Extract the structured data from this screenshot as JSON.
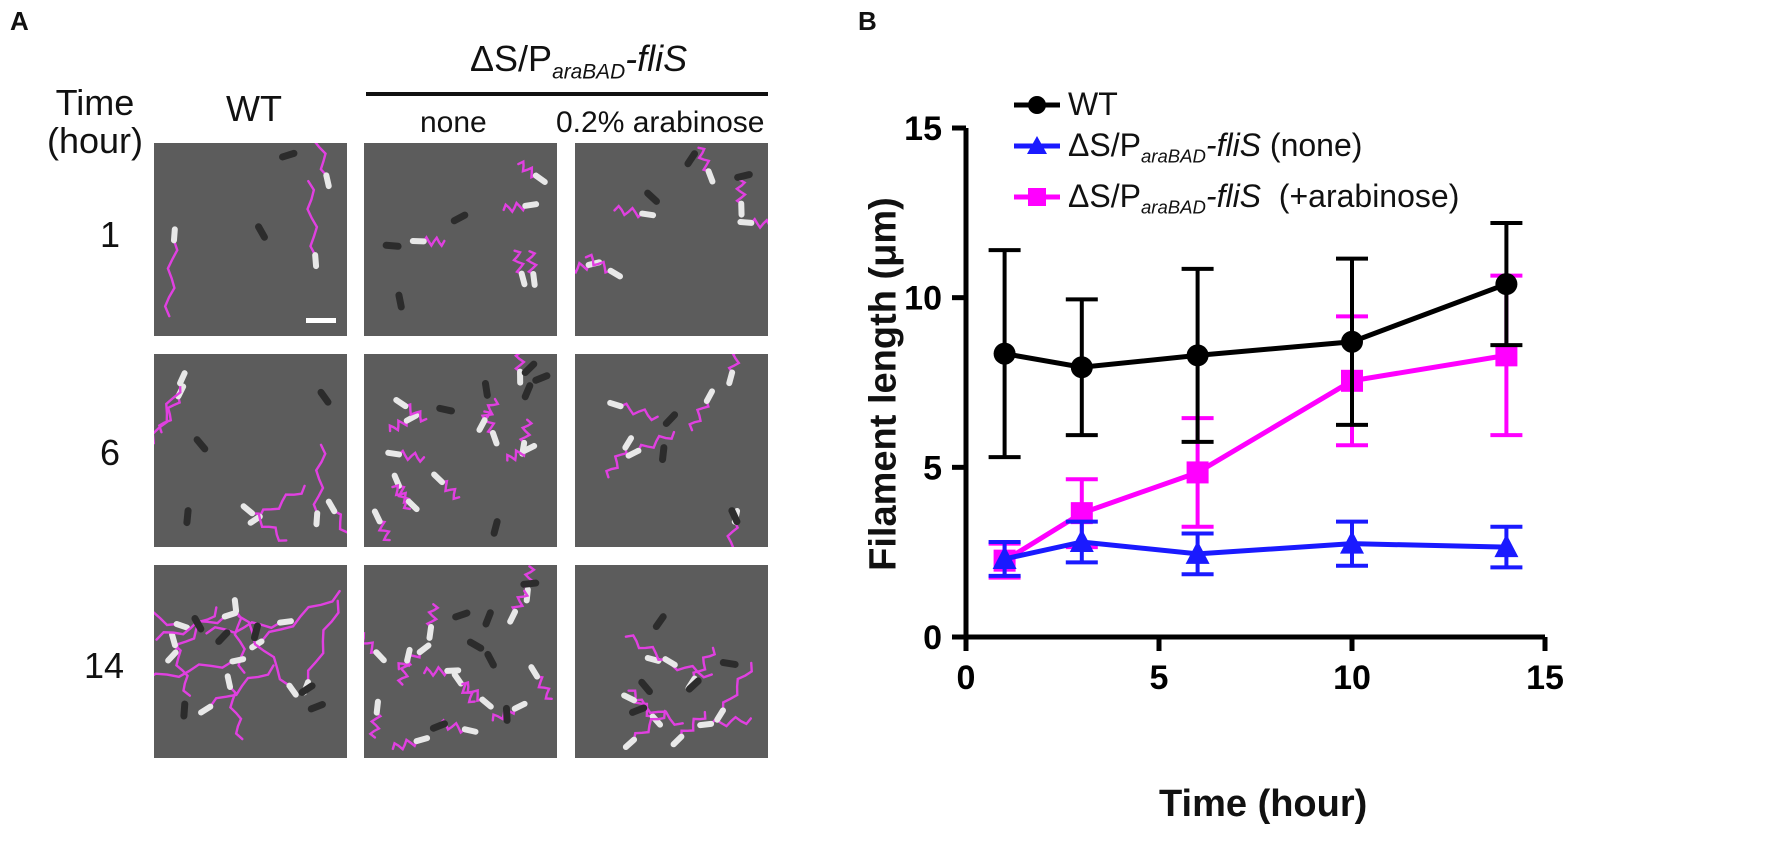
{
  "panel_a": {
    "letter": "A",
    "time_label_1": "Time",
    "time_label_2": "(hour)",
    "col_wt": "WT",
    "strain_delta": "ΔS/P",
    "strain_sub": "araBAD",
    "strain_gene": "-fliS",
    "cond_none": "none",
    "cond_arab": "0.2% arabinose",
    "rows": [
      "1",
      "6",
      "14"
    ],
    "colors": {
      "flagella": "#e040e0",
      "background": "#5c5c5c"
    }
  },
  "panel_b": {
    "letter": "B",
    "legend": {
      "wt": "WT",
      "none_main": "ΔS/P",
      "none_sub": "araBAD",
      "none_gene": "-fliS",
      "none_suffix": " (none)",
      "arab_main": "ΔS/P",
      "arab_sub": "araBAD",
      "arab_gene": "-fliS",
      "arab_suffix": "  (+arabinose)"
    }
  },
  "chart_data": {
    "type": "line",
    "xlabel": "Time (hour)",
    "ylabel": "Filament length (μm)",
    "xlim": [
      0,
      15
    ],
    "ylim": [
      0,
      15
    ],
    "xticks": [
      0,
      5,
      10,
      15
    ],
    "yticks": [
      0,
      5,
      10,
      15
    ],
    "grid": false,
    "legend_position": "top-left",
    "series": [
      {
        "name": "WT",
        "color": "#000000",
        "marker": "circle",
        "x": [
          1,
          3,
          6,
          10,
          14
        ],
        "y": [
          8.35,
          7.95,
          8.3,
          8.7,
          10.4
        ],
        "err": [
          3.05,
          2.0,
          2.55,
          2.45,
          1.8
        ]
      },
      {
        "name": "ΔS/P araBAD-fliS (none)",
        "color": "#1a1aff",
        "marker": "triangle",
        "x": [
          1,
          3,
          6,
          10,
          14
        ],
        "y": [
          2.3,
          2.8,
          2.45,
          2.75,
          2.65
        ],
        "err": [
          0.5,
          0.6,
          0.6,
          0.65,
          0.6
        ]
      },
      {
        "name": "ΔS/P araBAD-fliS (+arabinose)",
        "color": "#ff00ff",
        "marker": "square",
        "x": [
          1,
          3,
          6,
          10,
          14
        ],
        "y": [
          2.25,
          3.65,
          4.85,
          7.55,
          8.3
        ],
        "err": [
          0.5,
          1.0,
          1.6,
          1.9,
          2.35
        ]
      }
    ]
  }
}
